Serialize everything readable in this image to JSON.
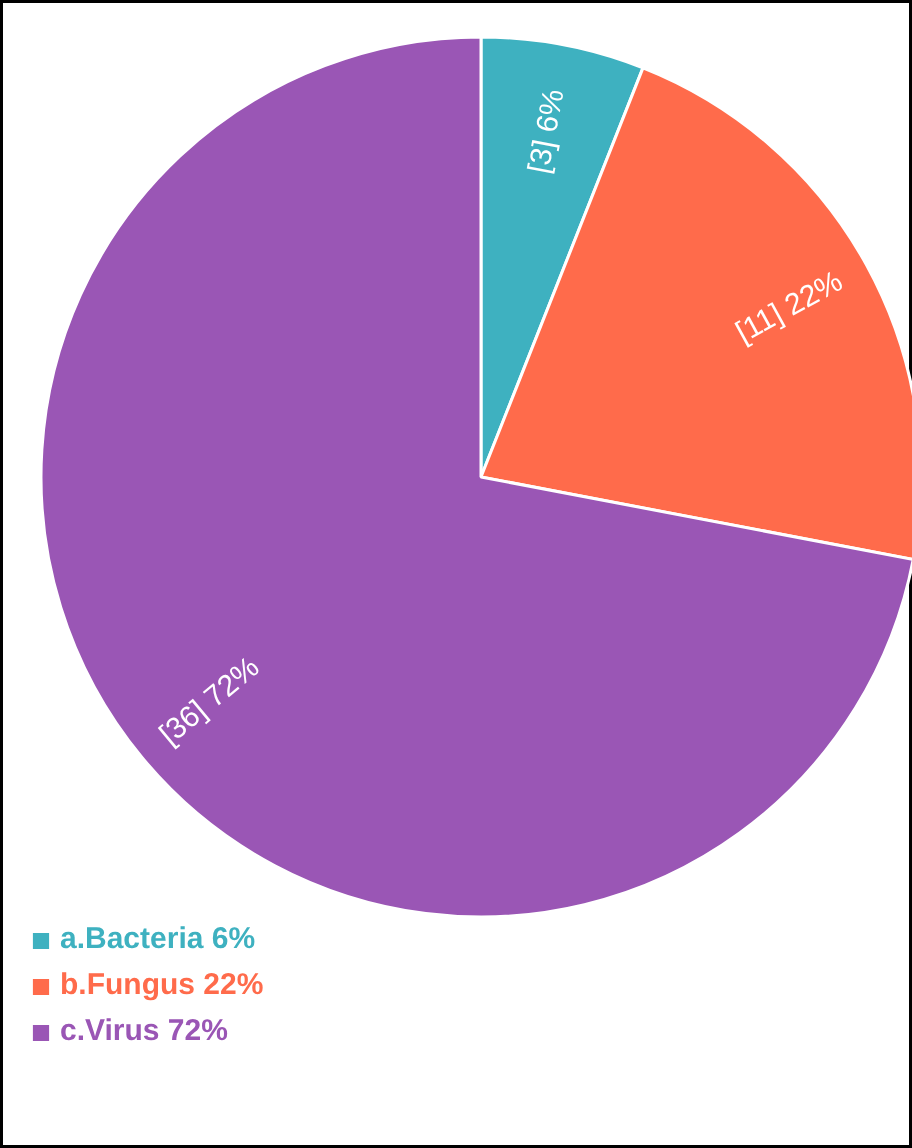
{
  "chart_data": {
    "type": "pie",
    "categories": [
      "a.Bacteria 6%",
      "b.Fungus 22%",
      "c.Virus 72%"
    ],
    "values": [
      3,
      11,
      36
    ],
    "colors": [
      "#3eb1c0",
      "#ff6b4b",
      "#9a56b5"
    ],
    "value_labels": [
      "[3] 6%",
      "[11] 22%",
      "[36] 72%"
    ],
    "legend": "bottom left"
  }
}
